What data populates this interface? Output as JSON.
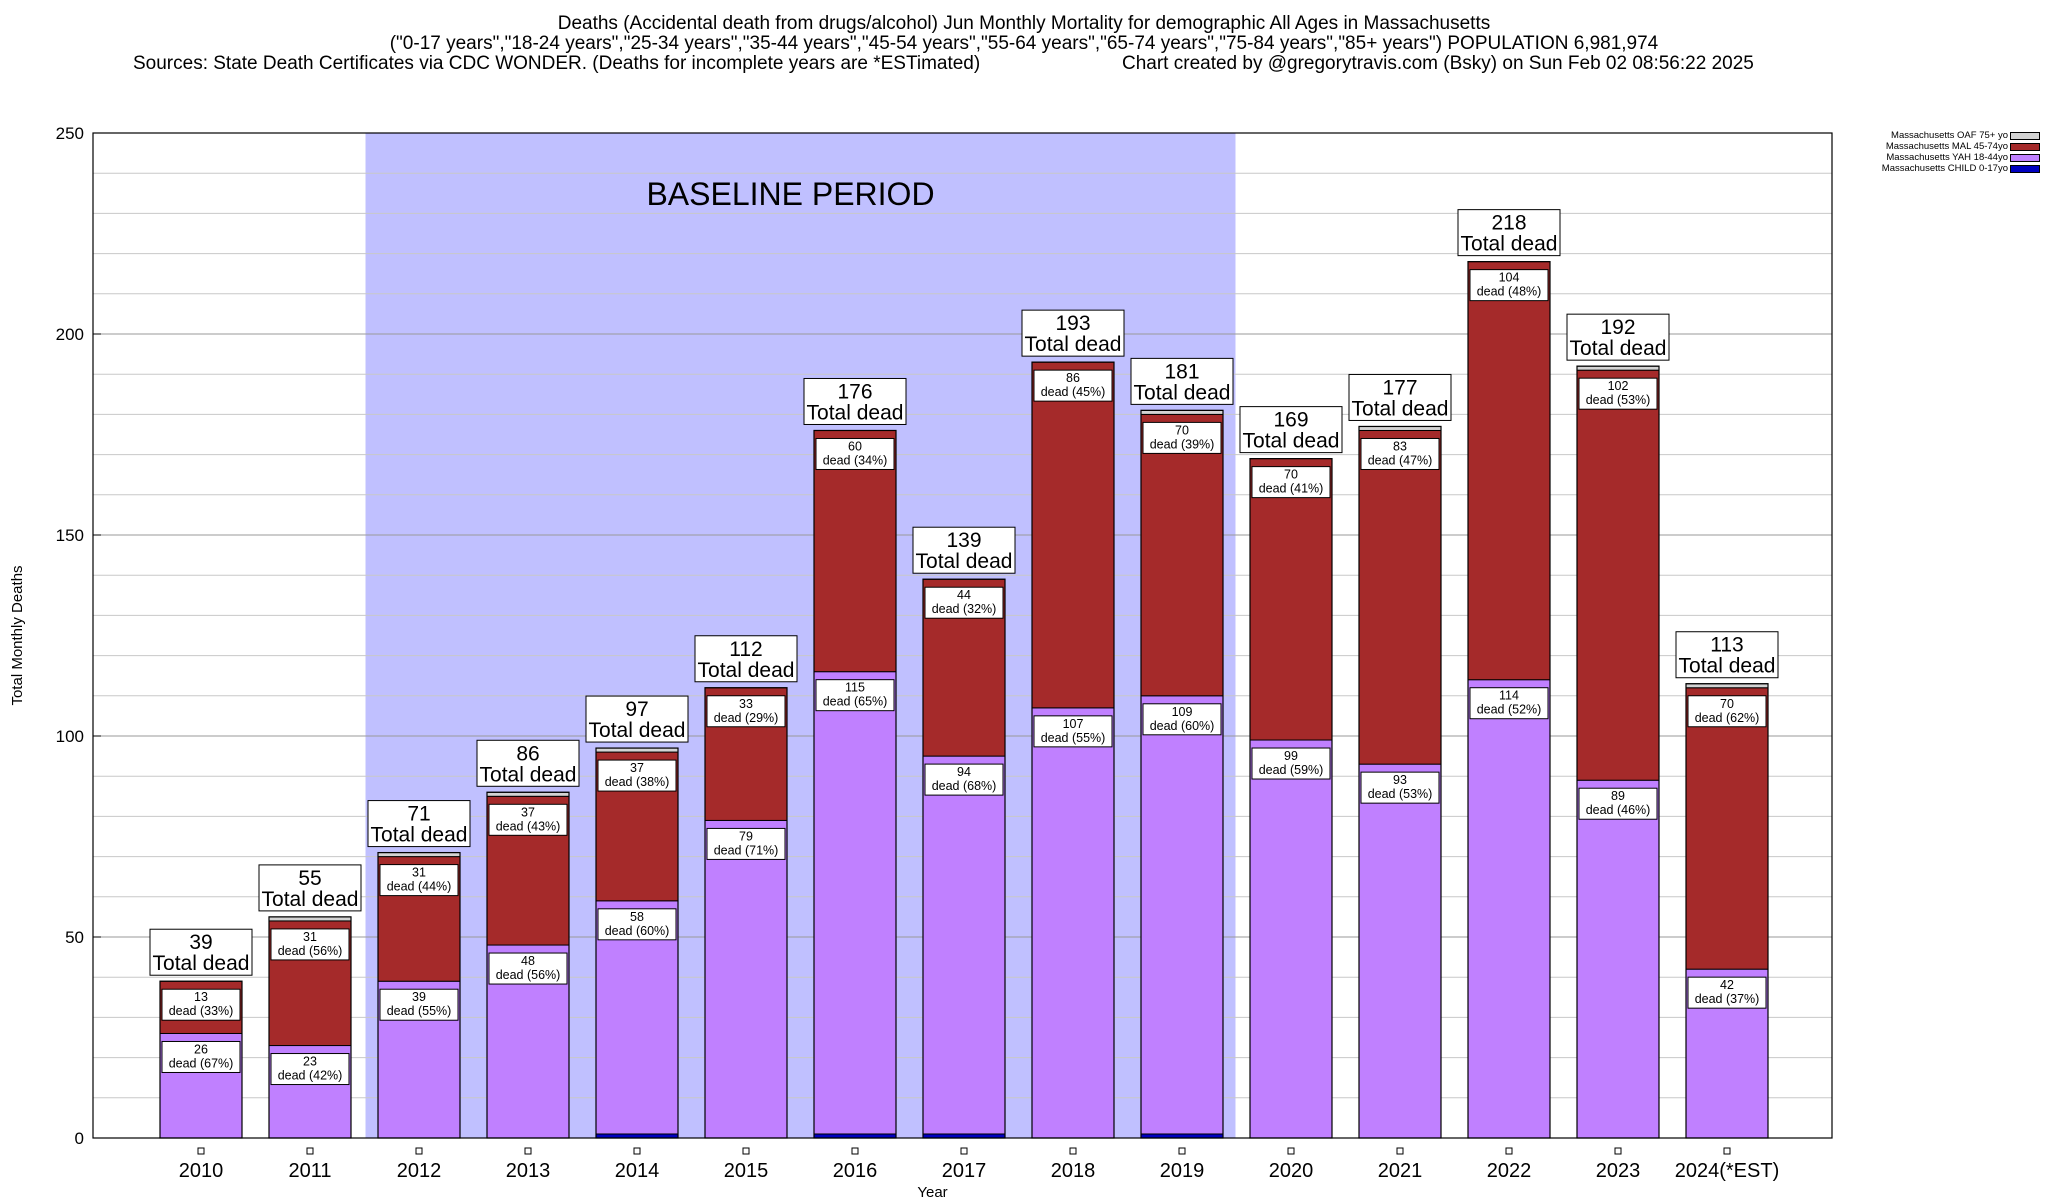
{
  "header": {
    "title_line1": "Deaths (Accidental death from drugs/alcohol) Jun Monthly Mortality for demographic All Ages in Massachusetts",
    "title_line2": "(\"0-17 years\",\"18-24 years\",\"25-34 years\",\"35-44 years\",\"45-54 years\",\"55-64 years\",\"65-74 years\",\"75-84 years\",\"85+ years\") POPULATION 6,981,974",
    "sources": "Sources: State Death Certificates via CDC WONDER. (Deaths for incomplete years are *ESTimated)",
    "credit": "Chart created by @gregorytravis.com (Bsky) on Sun Feb 02 08:56:22 2025"
  },
  "legend": [
    {
      "label": "Massachusetts OAF 75+ yo",
      "color": "#d3d3d3"
    },
    {
      "label": "Massachusetts MAL 45-74yo",
      "color": "#a52a2a"
    },
    {
      "label": "Massachusetts YAH 18-44yo",
      "color": "#c080ff"
    },
    {
      "label": "Massachusetts CHILD 0-17yo",
      "color": "#0000c0"
    }
  ],
  "chart_data": {
    "type": "bar",
    "stacked": true,
    "title": "Deaths (Accidental death from drugs/alcohol) Jun Monthly Mortality for demographic All Ages in Massachusetts",
    "xlabel": "Year",
    "ylabel": "Total Monthly Deaths",
    "ylim": [
      0,
      250
    ],
    "yticks": [
      0,
      50,
      100,
      150,
      200,
      250
    ],
    "grid": true,
    "legend_position": "outside-top-right",
    "categories": [
      "2010",
      "2011",
      "2012",
      "2013",
      "2014",
      "2015",
      "2016",
      "2017",
      "2018",
      "2019",
      "2020",
      "2021",
      "2022",
      "2023",
      "2024(*EST)"
    ],
    "totals": [
      39,
      55,
      71,
      86,
      97,
      112,
      176,
      139,
      193,
      181,
      169,
      177,
      218,
      192,
      113
    ],
    "total_label_suffix": "Total dead",
    "series": [
      {
        "name": "Massachusetts CHILD 0-17yo",
        "color": "#0000c0",
        "values": [
          0,
          0,
          0,
          0,
          1,
          0,
          1,
          1,
          0,
          1,
          0,
          0,
          0,
          0,
          0
        ]
      },
      {
        "name": "Massachusetts YAH 18-44yo",
        "color": "#c080ff",
        "values": [
          26,
          23,
          39,
          48,
          58,
          79,
          115,
          94,
          107,
          109,
          99,
          93,
          114,
          89,
          42
        ],
        "labels": [
          "26\ndead (67%)",
          "23\ndead (42%)",
          "39\ndead (55%)",
          "48\ndead (56%)",
          "58\ndead (60%)",
          "79\ndead (71%)",
          "115\ndead (65%)",
          "94\ndead (68%)",
          "107\ndead (55%)",
          "109\ndead (60%)",
          "99\ndead (59%)",
          "93\ndead (53%)",
          "114\ndead (52%)",
          "89\ndead (46%)",
          "42\ndead (37%)"
        ]
      },
      {
        "name": "Massachusetts MAL 45-74yo",
        "color": "#a52a2a",
        "values": [
          13,
          31,
          31,
          37,
          37,
          33,
          60,
          44,
          86,
          70,
          70,
          83,
          104,
          102,
          70
        ],
        "labels": [
          "13\ndead (33%)",
          "31\ndead (56%)",
          "31\ndead (44%)",
          "37\ndead (43%)",
          "37\ndead (38%)",
          "33\ndead (29%)",
          "60\ndead (34%)",
          "44\ndead (32%)",
          "86\ndead (45%)",
          "70\ndead (39%)",
          "70\ndead (41%)",
          "83\ndead (47%)",
          "104\ndead (48%)",
          "102\ndead (53%)",
          "70\ndead (62%)"
        ]
      },
      {
        "name": "Massachusetts OAF 75+ yo",
        "color": "#d3d3d3",
        "values": [
          0,
          1,
          1,
          1,
          1,
          0,
          0,
          0,
          0,
          1,
          0,
          1,
          0,
          1,
          1
        ]
      }
    ],
    "annotations": [
      {
        "text": "BASELINE PERIOD",
        "x_from": "2012",
        "x_to": "2019",
        "shade_color": "#c0c0ff"
      }
    ]
  }
}
